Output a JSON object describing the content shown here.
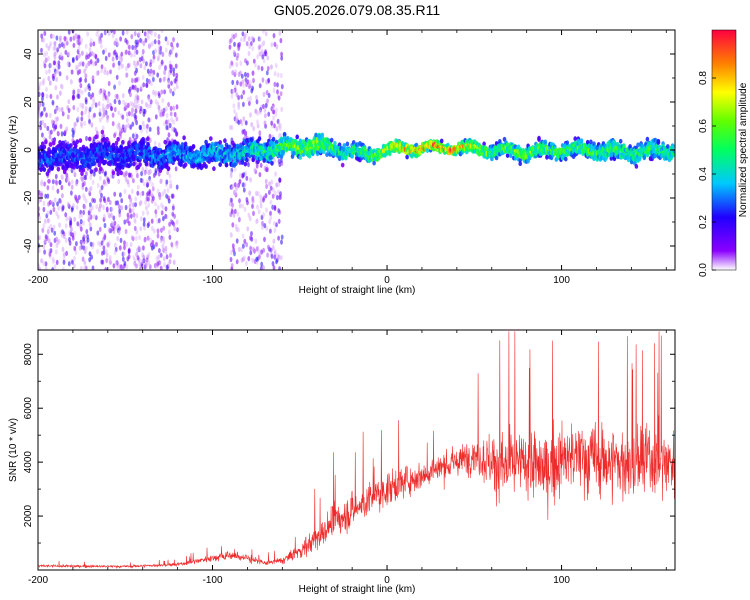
{
  "chart_data": [
    {
      "type": "heatmap",
      "title": "GN05.2026.079.08.35.R11",
      "xlabel": "Height of straight line (km)",
      "ylabel": "Frequency (Hz)",
      "xlim": [
        -200,
        165
      ],
      "ylim": [
        -50,
        50
      ],
      "xticks": [
        -200,
        -100,
        0,
        100
      ],
      "yticks": [
        -40,
        -20,
        0,
        20,
        40
      ],
      "colorbar": {
        "label": "Normalized spectral amplitude",
        "range": [
          0,
          1
        ],
        "ticks": [
          "0.0",
          "0.2",
          "0.4",
          "0.6",
          "0.8"
        ],
        "colormap": "rainbow (violet → red)"
      },
      "signal_track": {
        "description": "central frequency ridge near 0 Hz",
        "x": [
          -200,
          -150,
          -100,
          -80,
          -60,
          -40,
          -25,
          -10,
          0,
          20,
          40,
          60,
          80,
          100,
          120,
          140,
          165
        ],
        "center_hz": [
          -3,
          -2,
          -2,
          -1,
          1,
          2,
          0,
          -2,
          0,
          1,
          1,
          0,
          -1,
          0,
          0,
          -1,
          0
        ],
        "width_hz": [
          12,
          12,
          10,
          9,
          8,
          8,
          7,
          6,
          5,
          4,
          4,
          6,
          6,
          6,
          7,
          8,
          7
        ],
        "peak_amplitude": [
          0.3,
          0.3,
          0.4,
          0.45,
          0.6,
          0.7,
          0.5,
          0.6,
          0.75,
          0.9,
          0.9,
          0.6,
          0.65,
          0.6,
          0.6,
          0.55,
          0.55
        ]
      },
      "background_noise": {
        "description": "broadband scatter at low amplitude",
        "x_ranges": [
          [
            -200,
            -120
          ],
          [
            -90,
            -60
          ]
        ],
        "amplitude": 0.1
      }
    },
    {
      "type": "line",
      "title": "",
      "xlabel": "Height of straight line (km)",
      "ylabel": "SNR (10 * v/v)",
      "xlim": [
        -200,
        165
      ],
      "ylim": [
        0,
        8900
      ],
      "xticks": [
        -200,
        -100,
        0,
        100
      ],
      "yticks": [
        2000,
        4000,
        6000,
        8000
      ],
      "series": [
        {
          "name": "SNR",
          "color": "#ee2b2b",
          "envelope_x": [
            -200,
            -150,
            -120,
            -100,
            -90,
            -80,
            -70,
            -60,
            -50,
            -40,
            -30,
            -20,
            -10,
            0,
            10,
            20,
            30,
            40,
            50,
            60,
            70,
            80,
            90,
            100,
            110,
            120,
            130,
            140,
            150,
            165
          ],
          "envelope_mean": [
            150,
            130,
            200,
            450,
            550,
            450,
            250,
            350,
            700,
            1200,
            1800,
            2200,
            2600,
            3000,
            3300,
            3500,
            3800,
            4000,
            4300,
            4000,
            3800,
            4000,
            3700,
            4100,
            4200,
            4100,
            4000,
            3900,
            4100,
            4000
          ],
          "envelope_spread": [
            120,
            100,
            150,
            300,
            450,
            400,
            200,
            300,
            700,
            1200,
            1500,
            1500,
            1500,
            1500,
            1300,
            1200,
            1300,
            1300,
            1500,
            2700,
            3000,
            3000,
            3000,
            3000,
            3200,
            3300,
            3300,
            3200,
            3200,
            3000
          ]
        }
      ]
    }
  ]
}
